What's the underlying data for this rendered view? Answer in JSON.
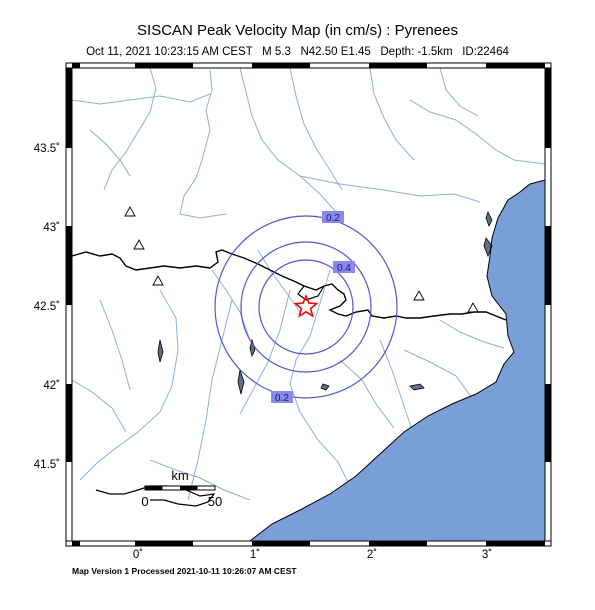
{
  "title": "SISCAN Peak Velocity Map (in cm/s) : Pyrenees",
  "subtitle": "Oct 11, 2021 10:23:15 AM CEST   M 5.3   N42.50 E1.45   Depth: -1.5km   ID:22464",
  "footer": "Map Version 1 Processed 2021-10-11 10:26:07 AM CEST",
  "x_ticks": [
    "0˚",
    "1˚",
    "2˚",
    "3˚"
  ],
  "y_ticks": [
    "43.5˚",
    "43˚",
    "42.5˚",
    "42˚",
    "41.5˚"
  ],
  "contour_labels": [
    "0.2",
    "0.4",
    "0.2"
  ],
  "scale": {
    "unit": "km",
    "start": "0",
    "end": "50"
  },
  "colors": {
    "sea": "#7a9fd8",
    "contour": "#5555cc",
    "rivers": "#8fb0d0",
    "epicenter": "#ff0000"
  }
}
